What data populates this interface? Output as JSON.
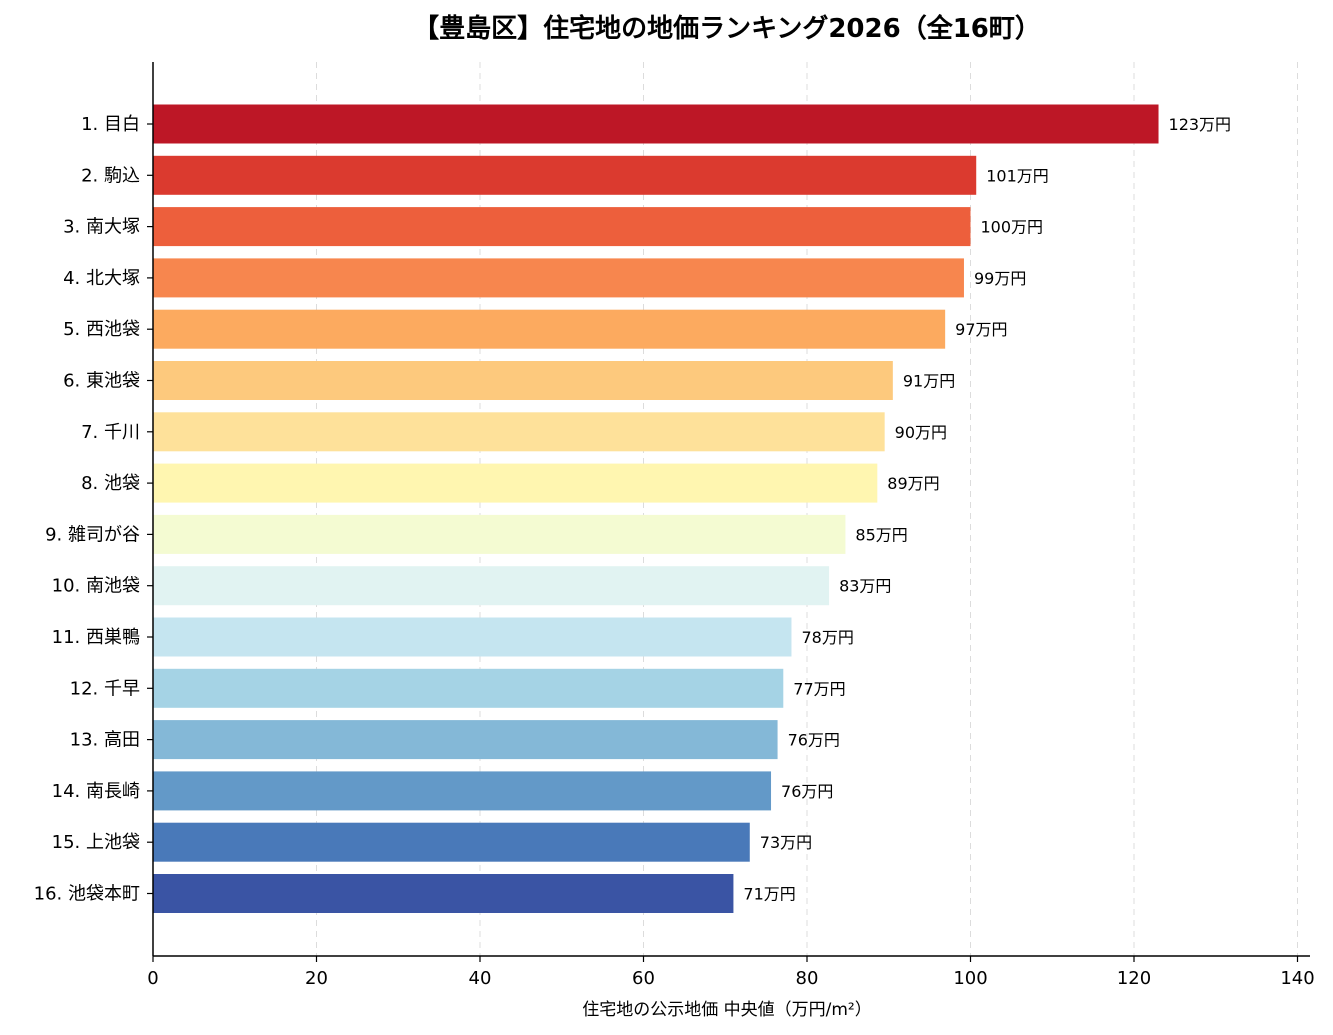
{
  "chart_data": {
    "type": "bar",
    "orientation": "horizontal",
    "title": "【豊島区】住宅地の地価ランキング2026（全16町）",
    "xlabel": "住宅地の公示地価 中央値（万円/m²）",
    "ylabel": "",
    "xlim": [
      0,
      140
    ],
    "xticks": [
      "0",
      "20",
      "40",
      "60",
      "80",
      "100",
      "120",
      "140"
    ],
    "grid": "vertical-dashed",
    "categories": [
      "1. 目白",
      "2. 駒込",
      "3. 南大塚",
      "4. 北大塚",
      "5. 西池袋",
      "6. 東池袋",
      "7. 千川",
      "8. 池袋",
      "9. 雑司が谷",
      "10. 南池袋",
      "11. 西巣鴨",
      "12. 千早",
      "13. 高田",
      "14. 南長崎",
      "15. 上池袋",
      "16. 池袋本町"
    ],
    "values": [
      123,
      100.7,
      100,
      99.2,
      96.9,
      90.5,
      89.5,
      88.6,
      84.7,
      82.7,
      78.1,
      77.1,
      76.4,
      75.6,
      73,
      71
    ],
    "value_labels": [
      "123万円",
      "101万円",
      "100万円",
      "99万円",
      "97万円",
      "91万円",
      "90万円",
      "89万円",
      "85万円",
      "83万円",
      "78万円",
      "77万円",
      "76万円",
      "76万円",
      "73万円",
      "71万円"
    ],
    "colors": [
      "#bd1726",
      "#db3a2f",
      "#ed5f3c",
      "#f7864e",
      "#fcaa5f",
      "#fdc97d",
      "#fee19a",
      "#fff6b0",
      "#f4fbd2",
      "#e1f3f2",
      "#c5e5f0",
      "#a5d3e5",
      "#84b8d7",
      "#6399c8",
      "#4979b9",
      "#3a54a4"
    ]
  }
}
